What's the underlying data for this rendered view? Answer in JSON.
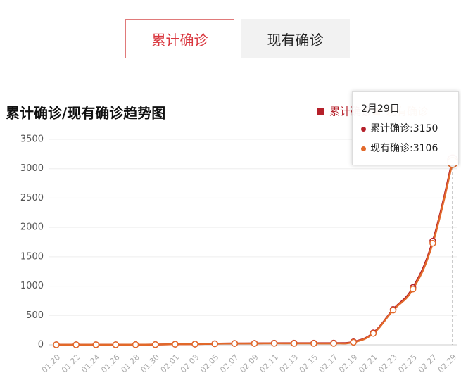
{
  "tabs": [
    "累计确诊",
    "现有确诊"
  ],
  "chart_data": {
    "type": "line",
    "title": "累计确诊/现有确诊趋势图",
    "categories": [
      "01.20",
      "01.22",
      "01.24",
      "01.26",
      "01.28",
      "01.30",
      "02.01",
      "02.03",
      "02.05",
      "02.07",
      "02.09",
      "02.11",
      "02.13",
      "02.15",
      "02.17",
      "02.19",
      "02.21",
      "02.23",
      "02.25",
      "02.27",
      "02.29"
    ],
    "series": [
      {
        "name": "累计确诊",
        "color": "#b5202a",
        "values": [
          1,
          1,
          2,
          2,
          3,
          4,
          10,
          12,
          19,
          24,
          25,
          28,
          28,
          29,
          30,
          51,
          204,
          602,
          977,
          1766,
          3150
        ]
      },
      {
        "name": "现有确诊",
        "color": "#e2692a",
        "values": [
          1,
          1,
          2,
          2,
          3,
          4,
          10,
          12,
          18,
          22,
          23,
          25,
          24,
          24,
          24,
          44,
          194,
          590,
          950,
          1730,
          3106
        ]
      }
    ],
    "ylim": [
      0,
      3500
    ],
    "yticks": [
      0,
      500,
      1000,
      1500,
      2000,
      2500,
      3000,
      3500
    ],
    "grid": true,
    "legend": "top-right"
  },
  "tooltip": {
    "title": "2月29日",
    "lines": [
      "累计确诊:3150",
      "现有确诊:3106"
    ]
  }
}
